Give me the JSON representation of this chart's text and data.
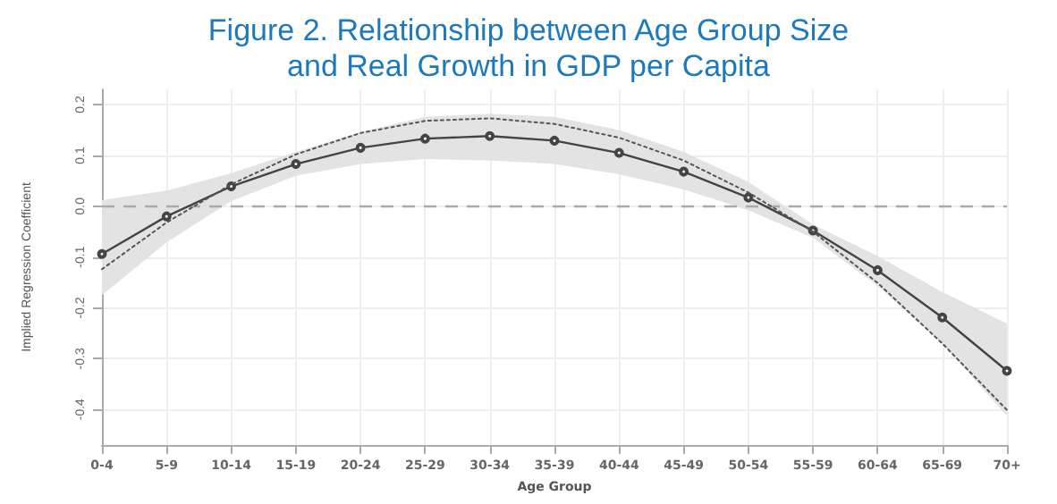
{
  "chart_data": {
    "type": "line",
    "title": "Figure 2. Relationship between Age Group Size\nand Real Growth in GDP per Capita",
    "xlabel": "Age Group",
    "ylabel": "Implied Regression Coefficient",
    "categories": [
      "0-4",
      "5-9",
      "10-14",
      "15-19",
      "20-24",
      "25-29",
      "30-34",
      "35-39",
      "40-44",
      "45-49",
      "50-54",
      "55-59",
      "60-64",
      "65-69",
      "70+"
    ],
    "series": [
      {
        "color": "#444444",
        "marker": "circle",
        "line_style": "solid",
        "values": [
          -0.094,
          -0.02,
          0.039,
          0.083,
          0.115,
          0.133,
          0.138,
          0.129,
          0.105,
          0.068,
          0.017,
          -0.048,
          -0.126,
          -0.219,
          -0.324
        ],
        "lower": [
          -0.175,
          -0.071,
          0.01,
          0.06,
          0.083,
          0.093,
          0.09,
          0.083,
          0.063,
          0.033,
          -0.008,
          -0.062,
          -0.157,
          -0.27,
          -0.413
        ],
        "upper": [
          0.012,
          0.031,
          0.065,
          0.107,
          0.146,
          0.176,
          0.182,
          0.176,
          0.15,
          0.107,
          0.048,
          -0.036,
          -0.098,
          -0.169,
          -0.231
        ]
      },
      {
        "color": "#555555",
        "marker": "none",
        "line_style": "dotted",
        "values": [
          -0.124,
          -0.032,
          0.043,
          0.102,
          0.144,
          0.168,
          0.173,
          0.162,
          0.135,
          0.09,
          0.027,
          -0.05,
          -0.151,
          -0.27,
          -0.401
        ]
      }
    ],
    "ylim": [
      -0.47,
      0.23
    ],
    "yticks": [
      -0.4,
      -0.3,
      -0.2,
      -0.1,
      {
        "value": 0,
        "label": "0.0"
      },
      0.1,
      0.2
    ],
    "grid": true,
    "ref_lines": [
      {
        "axis": "y",
        "value": 0,
        "color": "#aaaaaa",
        "line_style": "dashed"
      }
    ]
  }
}
